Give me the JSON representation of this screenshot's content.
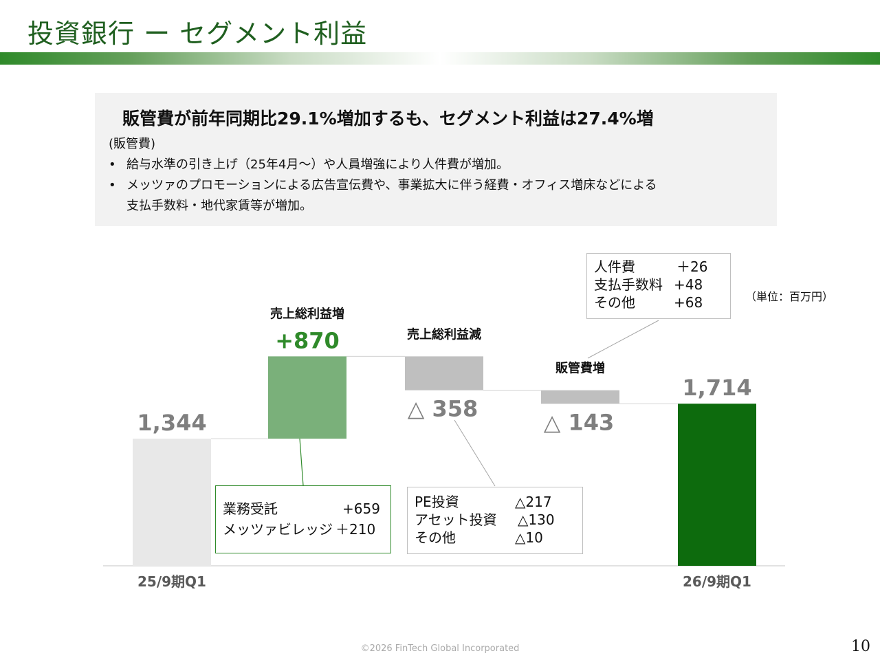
{
  "page": {
    "title": "投資銀行 ー セグメント利益",
    "page_number": "10",
    "footer": "©2026 FinTech Global Incorporated",
    "unit": "（単位：百万円）"
  },
  "summary": {
    "headline": "販管費が前年同期比29.1%増加するも、セグメント利益は27.4%増",
    "subheading": "(販管費)",
    "bullet_mark": "•",
    "bullets": [
      "給与水準の引き上げ（25年4月～）や人員増強により人件費が増加。",
      "メッツァのプロモーションによる広告宣伝費や、事業拡大に伴う経費・オフィス増床などによる"
    ],
    "bullet2_cont": "支払手数料・地代家賃等が増加。"
  },
  "colors": {
    "title": "#1f5f1f",
    "start_bar": "#e8e8e8",
    "increase_bar": "#7ab07a",
    "decrease_bar": "#bfbfbf",
    "end_bar": "#0d6b0d",
    "increase_text": "#2f8a2a",
    "gray_text": "#7f7f7f"
  },
  "chart_data": {
    "type": "waterfall",
    "unit": "百万円",
    "ylim": [
      0,
      1800
    ],
    "bars": [
      {
        "kind": "total",
        "category": "25/9期Q1",
        "label": "",
        "value": 1344,
        "value_label": "1,344"
      },
      {
        "kind": "increase",
        "category": "",
        "label": "売上総利益増",
        "value": 870,
        "value_label": "+870"
      },
      {
        "kind": "decrease",
        "category": "",
        "label": "売上総利益減",
        "value": -358,
        "value_label": "△ 358"
      },
      {
        "kind": "decrease",
        "category": "",
        "label": "販管費増",
        "value": -143,
        "value_label": "△ 143"
      },
      {
        "kind": "total",
        "category": "26/9期Q1",
        "label": "",
        "value": 1714,
        "value_label": "1,714"
      }
    ]
  },
  "callouts": {
    "sga": [
      {
        "name": "人件費",
        "value": "＋26"
      },
      {
        "name": "支払手数料",
        "value": "+48"
      },
      {
        "name": "その他",
        "value": "+68"
      }
    ],
    "gp_increase": [
      {
        "name": "業務受託",
        "value": "+659"
      },
      {
        "name": "メッツァビレッジ",
        "value": "＋210"
      }
    ],
    "gp_decrease": [
      {
        "name": "PE投資",
        "value": "△217"
      },
      {
        "name": "アセット投資",
        "value": "△130"
      },
      {
        "name": "その他",
        "value": "△10"
      }
    ]
  }
}
